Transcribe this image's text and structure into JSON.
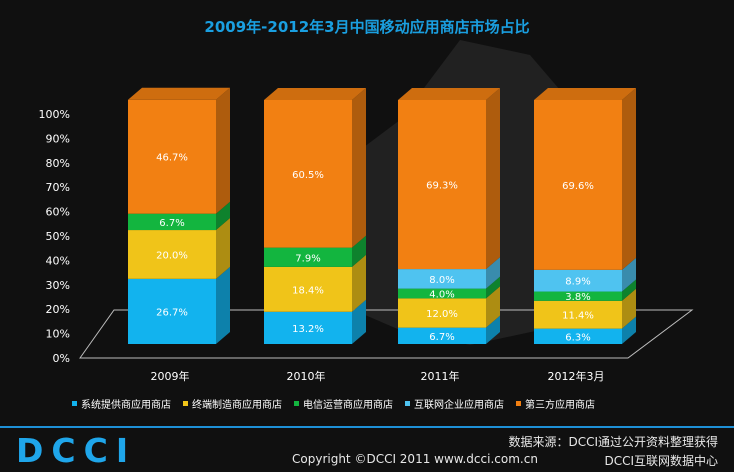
{
  "chart_data": {
    "type": "bar",
    "stacked": true,
    "title": "2009年-2012年3月中国移动应用商店市场占比",
    "categories": [
      "2009年",
      "2010年",
      "2011年",
      "2012年3月"
    ],
    "ylim": [
      0,
      100
    ],
    "yticks": [
      "0%",
      "10%",
      "20%",
      "30%",
      "40%",
      "50%",
      "60%",
      "70%",
      "80%",
      "90%",
      "100%"
    ],
    "series": [
      {
        "name": "系统提供商应用商店",
        "color": "#12b3ee",
        "values": [
          26.7,
          13.2,
          6.7,
          6.3
        ],
        "labels": [
          "26.7%",
          "13.2%",
          "6.7%",
          "6.3%"
        ]
      },
      {
        "name": "终端制造商应用商店",
        "color": "#f0c419",
        "values": [
          20.0,
          18.4,
          12.0,
          11.4
        ],
        "labels": [
          "20.0%",
          "18.4%",
          "12.0%",
          "11.4%"
        ]
      },
      {
        "name": "电信运营商应用商店",
        "color": "#13b53f",
        "values": [
          6.7,
          7.9,
          4.0,
          3.8
        ],
        "labels": [
          "6.7%",
          "7.9%",
          "4.0%",
          "3.8%"
        ]
      },
      {
        "name": "互联网企业应用商店",
        "color": "#4fc3f0",
        "values": [
          0,
          0,
          8.0,
          8.9
        ],
        "labels": [
          "",
          "",
          "8.0%",
          "8.9%"
        ]
      },
      {
        "name": "第三方应用商店",
        "color": "#f28012",
        "values": [
          46.7,
          60.5,
          69.3,
          69.6
        ],
        "labels": [
          "46.7%",
          "60.5%",
          "69.3%",
          "69.6%"
        ]
      }
    ],
    "legend_position": "bottom"
  },
  "footer": {
    "logo": "DCCI",
    "source": "数据来源：DCCI通过公开资料整理获得",
    "copyright": "Copyright ©DCCI 2011 www.dcci.com.cn",
    "center": "DCCI互联网数据中心"
  }
}
